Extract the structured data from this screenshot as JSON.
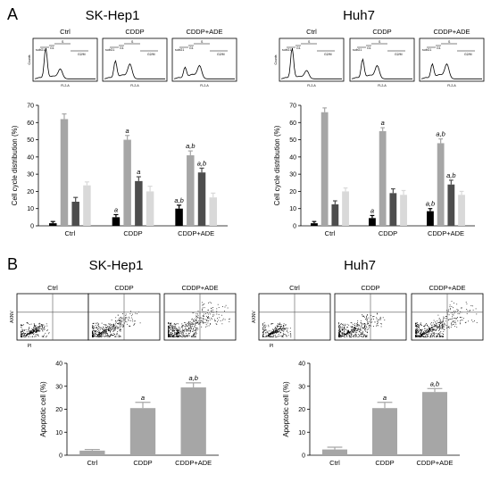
{
  "panels": {
    "A": "A",
    "B": "B"
  },
  "colors": {
    "subG1": "#000000",
    "G1": "#a6a6a6",
    "S": "#4d4d4d",
    "G2M": "#d9d9d9",
    "apoptotic": "#a6a6a6"
  },
  "cell_lines": [
    "SK-Hep1",
    "Huh7"
  ],
  "treatments": [
    "Ctrl",
    "CDDP",
    "CDDP+ADE"
  ],
  "flow_labels": {
    "subG1": "subG1",
    "G1": "G1",
    "S": "S",
    "G2M": "G2/M",
    "counts": "Counts",
    "fl2": "FL2-A",
    "axnv": "AXNV",
    "pi": "PI"
  },
  "chart_data": [
    {
      "type": "bar",
      "panel": "A",
      "cell_line": "SK-Hep1",
      "categories": [
        "Ctrl",
        "CDDP",
        "CDDP+ADE"
      ],
      "series": [
        {
          "values": [
            1.5,
            5.0,
            10.0
          ],
          "errors": [
            1.0,
            1.5,
            2.0
          ]
        },
        {
          "values": [
            62,
            50,
            41
          ],
          "errors": [
            3.0,
            2.5,
            2.5
          ]
        },
        {
          "values": [
            14,
            26,
            31
          ],
          "errors": [
            2.5,
            2.5,
            2.5
          ]
        },
        {
          "values": [
            23.5,
            20,
            16.5
          ],
          "errors": [
            2.0,
            3.0,
            2.5
          ]
        }
      ],
      "annotations": [
        [
          "",
          "",
          "",
          ""
        ],
        [
          "a",
          "a",
          "a",
          ""
        ],
        [
          "a,b",
          "a,b",
          "a,b",
          ""
        ]
      ],
      "ylabel": "Cell cycle distribution (%)",
      "ylim": [
        0,
        70
      ],
      "yticks": [
        0,
        10,
        20,
        30,
        40,
        50,
        60,
        70
      ]
    },
    {
      "type": "bar",
      "panel": "A",
      "cell_line": "Huh7",
      "categories": [
        "Ctrl",
        "CDDP",
        "CDDP+ADE"
      ],
      "series": [
        {
          "values": [
            1.5,
            4.5,
            8.5
          ],
          "errors": [
            1.0,
            1.5,
            1.5
          ]
        },
        {
          "values": [
            66,
            55,
            48
          ],
          "errors": [
            2.5,
            2.0,
            2.5
          ]
        },
        {
          "values": [
            12.5,
            19,
            24
          ],
          "errors": [
            2.0,
            2.5,
            2.5
          ]
        },
        {
          "values": [
            20,
            18,
            18
          ],
          "errors": [
            2.0,
            2.5,
            2.0
          ]
        }
      ],
      "annotations": [
        [
          "",
          "",
          "",
          ""
        ],
        [
          "a",
          "a",
          "",
          ""
        ],
        [
          "a,b",
          "a,b",
          "a,b",
          ""
        ]
      ],
      "ylabel": "Cell cycle distribution (%)",
      "ylim": [
        0,
        70
      ],
      "yticks": [
        0,
        10,
        20,
        30,
        40,
        50,
        60,
        70
      ]
    },
    {
      "type": "bar",
      "panel": "B",
      "cell_line": "SK-Hep1",
      "categories": [
        "Ctrl",
        "CDDP",
        "CDDP+ADE"
      ],
      "values": [
        2.0,
        20.5,
        29.5
      ],
      "errors": [
        0.5,
        2.5,
        2.0
      ],
      "annotations": [
        "",
        "a",
        "a,b"
      ],
      "ylabel": "Apoptotic cell (%)",
      "ylim": [
        0,
        40
      ],
      "yticks": [
        0,
        10,
        20,
        30,
        40
      ]
    },
    {
      "type": "bar",
      "panel": "B",
      "cell_line": "Huh7",
      "categories": [
        "Ctrl",
        "CDDP",
        "CDDP+ADE"
      ],
      "values": [
        2.5,
        20.5,
        27.5
      ],
      "errors": [
        1.0,
        2.5,
        1.5
      ],
      "annotations": [
        "",
        "a",
        "a,b"
      ],
      "ylabel": "Apoptotic cell (%)",
      "ylim": [
        0,
        40
      ],
      "yticks": [
        0,
        10,
        20,
        30,
        40
      ]
    }
  ]
}
